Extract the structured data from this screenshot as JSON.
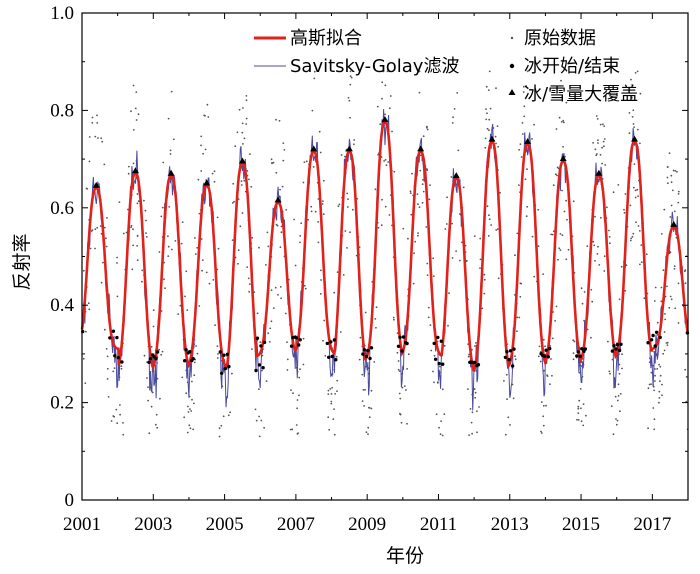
{
  "chart_data": {
    "type": "line",
    "xlabel": "年份",
    "ylabel": "反射率",
    "xlim": [
      2001,
      2018
    ],
    "ylim": [
      0,
      1.0
    ],
    "x_ticks": [
      2001,
      2003,
      2005,
      2007,
      2009,
      2011,
      2013,
      2015,
      2017
    ],
    "x_tick_labels": [
      "2001",
      "2003",
      "2005",
      "2007",
      "2009",
      "2011",
      "2013",
      "2015",
      "2017"
    ],
    "y_ticks": [
      0,
      0.2,
      0.4,
      0.6,
      0.8,
      1.0
    ],
    "y_tick_labels": [
      "0",
      "0.2",
      "0.4",
      "0.6",
      "0.8",
      "1.0"
    ],
    "grid": false,
    "legend_position": "top-right",
    "legend": {
      "gaussian": "高斯拟合",
      "sg": "Savitsky-Golay滤波",
      "raw": "原始数据",
      "ice_onoff": "冰开始/结束",
      "max_cover": "冰/雪量大覆盖"
    },
    "series": [
      {
        "name": "高斯拟合",
        "type": "line",
        "color": "#e0221b",
        "peaks": [
          {
            "year": 2001.4,
            "value": 0.64,
            "min_before": 0.31
          },
          {
            "year": 2002.5,
            "value": 0.67,
            "min_before": 0.26
          },
          {
            "year": 2003.5,
            "value": 0.665,
            "min_before": 0.265
          },
          {
            "year": 2004.5,
            "value": 0.645,
            "min_before": 0.27
          },
          {
            "year": 2005.5,
            "value": 0.69,
            "min_before": 0.24
          },
          {
            "year": 2006.5,
            "value": 0.61,
            "min_before": 0.295
          },
          {
            "year": 2007.5,
            "value": 0.715,
            "min_before": 0.3
          },
          {
            "year": 2008.5,
            "value": 0.715,
            "min_before": 0.26
          },
          {
            "year": 2009.5,
            "value": 0.775,
            "min_before": 0.285
          },
          {
            "year": 2010.5,
            "value": 0.715,
            "min_before": 0.295
          },
          {
            "year": 2011.5,
            "value": 0.66,
            "min_before": 0.255
          },
          {
            "year": 2012.5,
            "value": 0.735,
            "min_before": 0.255
          },
          {
            "year": 2013.5,
            "value": 0.73,
            "min_before": 0.27
          },
          {
            "year": 2014.5,
            "value": 0.695,
            "min_before": 0.275
          },
          {
            "year": 2015.5,
            "value": 0.665,
            "min_before": 0.28
          },
          {
            "year": 2016.5,
            "value": 0.735,
            "min_before": 0.29
          },
          {
            "year": 2017.6,
            "value": 0.56,
            "min_before": 0.31
          }
        ]
      },
      {
        "name": "Savitsky-Golay滤波",
        "type": "line",
        "color": "#4b4b9e"
      },
      {
        "name": "原始数据",
        "type": "scatter",
        "color": "#555555",
        "y_range": [
          0.12,
          0.88
        ]
      },
      {
        "name": "冰开始/结束",
        "type": "scatter",
        "marker": "dot",
        "color": "#000000"
      },
      {
        "name": "冰/雪量大覆盖",
        "type": "scatter",
        "marker": "triangle",
        "color": "#000000",
        "x": [
          2001.4,
          2002.5,
          2003.5,
          2004.5,
          2005.5,
          2006.5,
          2007.5,
          2008.5,
          2009.5,
          2010.5,
          2011.5,
          2012.5,
          2013.5,
          2014.5,
          2015.5,
          2016.5,
          2017.6
        ],
        "y": [
          0.645,
          0.675,
          0.67,
          0.65,
          0.695,
          0.615,
          0.72,
          0.72,
          0.78,
          0.72,
          0.665,
          0.74,
          0.735,
          0.7,
          0.67,
          0.74,
          0.565
        ]
      }
    ]
  }
}
